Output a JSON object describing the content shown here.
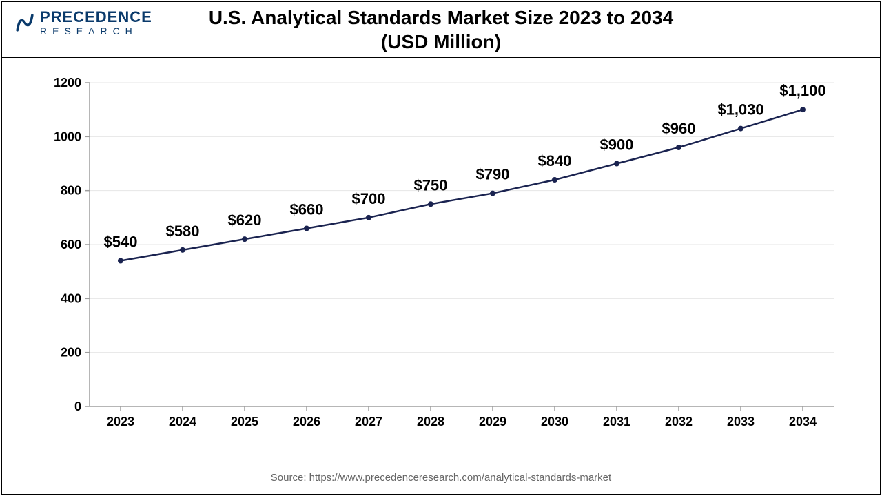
{
  "logo": {
    "line1": "PRECEDENCE",
    "line2": "RESEARCH"
  },
  "title_line1": "U.S. Analytical Standards Market Size 2023 to 2034",
  "title_line2": "(USD Million)",
  "source": "Source: https://www.precedenceresearch.com/analytical-standards-market",
  "chart": {
    "type": "line",
    "x_labels": [
      "2023",
      "2024",
      "2025",
      "2026",
      "2027",
      "2028",
      "2029",
      "2030",
      "2031",
      "2032",
      "2033",
      "2034"
    ],
    "values": [
      540,
      580,
      620,
      660,
      700,
      750,
      790,
      840,
      900,
      960,
      1030,
      1100
    ],
    "value_labels": [
      "$540",
      "$580",
      "$620",
      "$660",
      "$700",
      "$750",
      "$790",
      "$840",
      "$900",
      "$960",
      "$1,030",
      "$1,100"
    ],
    "ylim": [
      0,
      1200
    ],
    "ytick_step": 200,
    "y_ticks": [
      0,
      200,
      400,
      600,
      800,
      1000,
      1200
    ],
    "line_color": "#1a2350",
    "line_width": 2.5,
    "marker_color": "#1a2350",
    "marker_radius": 4,
    "background_color": "#ffffff",
    "grid_color": "#e6e6e6",
    "axis_color": "#9e9e9e",
    "tick_label_fontsize": 18,
    "value_label_fontsize": 22,
    "title_fontsize": 28
  }
}
